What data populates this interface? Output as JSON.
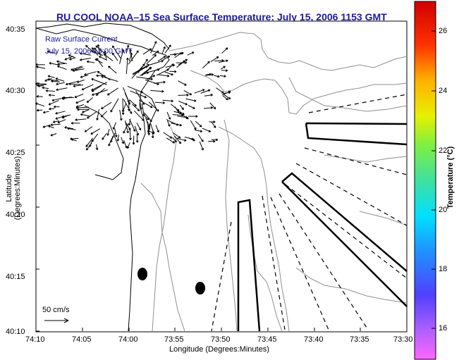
{
  "title": "RU COOL  NOAA–15  Sea Surface Temperature:  July 15, 2006 1153 GMT",
  "legend": {
    "line1": "Raw Surface Current",
    "line2": "July 15, 2006 13:00 GMT"
  },
  "scale_label": "50 cm/s",
  "axes": {
    "xlabel": "Longitude (Degrees:Minutes)",
    "ylabel": "Latitude (Degrees:Minutes)",
    "xticks": [
      "74:10",
      "74:05",
      "74:00",
      "73:55",
      "73:50",
      "73:45",
      "73:40",
      "73:35",
      "73:30"
    ],
    "yticks": [
      "40:35",
      "40:30",
      "40:25",
      "40:20",
      "40:15",
      "40:10"
    ]
  },
  "colorbar": {
    "label": "Temperature (°C)",
    "ticks": [
      "26",
      "24",
      "22",
      "20",
      "18",
      "16"
    ],
    "range": [
      15,
      27
    ]
  },
  "colors": {
    "title": "#1a1aa0",
    "vectors": "#000000",
    "contour": "#909090"
  }
}
